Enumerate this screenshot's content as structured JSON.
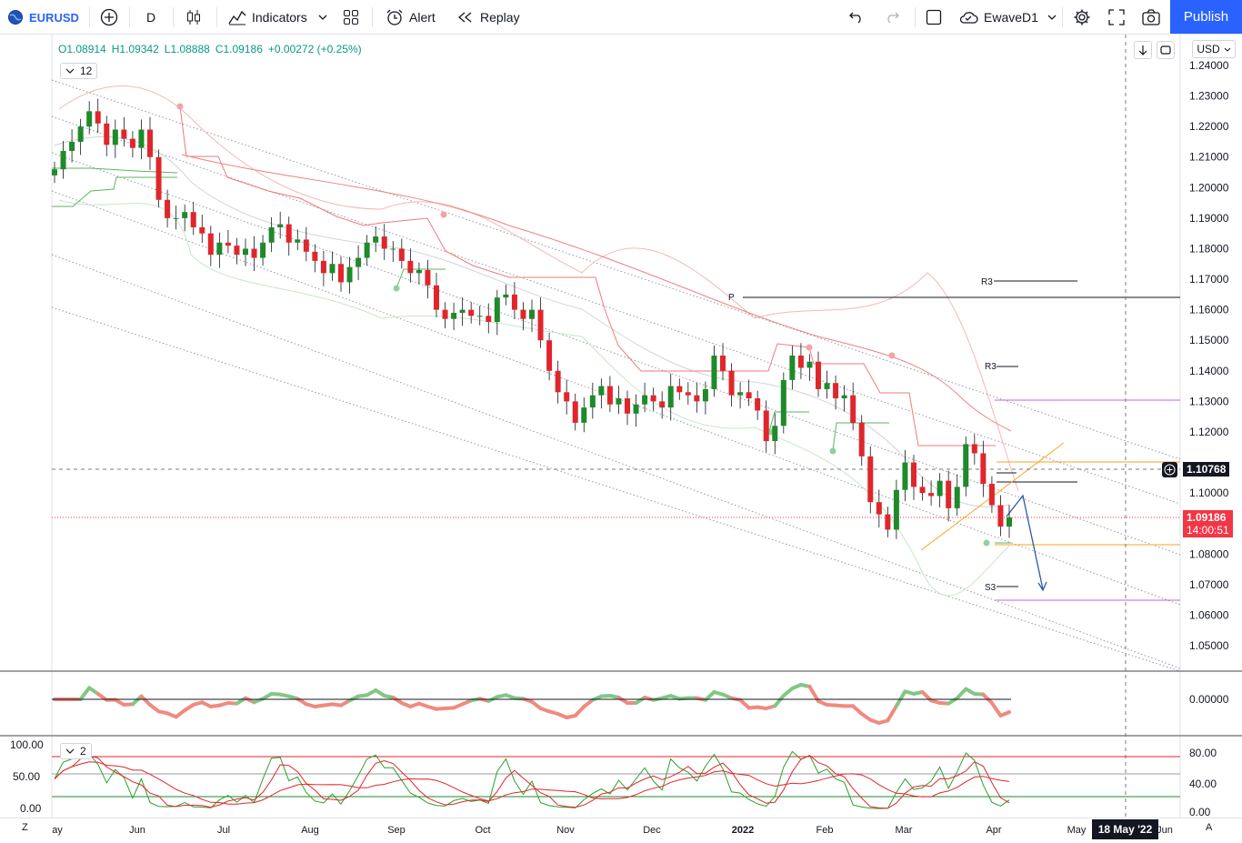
{
  "toolbar": {
    "symbol": "EURUSD",
    "interval": "D",
    "indicators_label": "Indicators",
    "alert_label": "Alert",
    "replay_label": "Replay",
    "layout_name": "EwaveD1",
    "publish_label": "Publish"
  },
  "legend": {
    "open": "O1.08914",
    "high": "H1.09342",
    "low": "L1.08888",
    "close": "C1.09186",
    "change": "+0.00272 (+0.25%)",
    "indicator_count": "12",
    "pane3_count": "2"
  },
  "price_axis": {
    "currency": "USD",
    "ticks": [
      "1.24000",
      "1.23000",
      "1.22000",
      "1.21000",
      "1.20000",
      "1.19000",
      "1.18000",
      "1.17000",
      "1.16000",
      "1.15000",
      "1.14000",
      "1.13000",
      "1.12000",
      "1.10000",
      "1.08000",
      "1.07000",
      "1.06000",
      "1.05000"
    ],
    "crosshair_price": "1.10768",
    "last_price": "1.09186",
    "countdown": "14:00:51"
  },
  "osc_axis": {
    "ticks": [
      "0.00000"
    ]
  },
  "stoch_axis": {
    "left_ticks": [
      "100.00",
      "50.00",
      "0.00"
    ],
    "right_ticks": [
      "80.00",
      "40.00",
      "0.00"
    ]
  },
  "pivots": {
    "p": "P",
    "r3a": "R3",
    "r3b": "R3",
    "s3": "S3"
  },
  "time_axis": {
    "ticks": [
      "ay",
      "Jun",
      "Jul",
      "Aug",
      "Sep",
      "Oct",
      "Nov",
      "Dec",
      "2022",
      "Feb",
      "Mar",
      "Apr",
      "May",
      "Jun"
    ],
    "crosshair_date": "18 May '22",
    "left_button": "Z",
    "right_button": "A"
  },
  "colors": {
    "up": "#1e8a2a",
    "down": "#e0262b",
    "accent": "#2962ff",
    "last_price": "#f23645"
  },
  "chart_data": {
    "type": "candlestick",
    "symbol": "EURUSD",
    "timeframe": "D",
    "ylim": [
      1.045,
      1.245
    ],
    "last": 1.09186,
    "note_levels": {
      "P": 1.164,
      "R3_upper": 1.169,
      "R3_lower": 1.141,
      "S3": 1.07
    },
    "closes": [
      1.206,
      1.212,
      1.215,
      1.22,
      1.225,
      1.221,
      1.214,
      1.219,
      1.216,
      1.213,
      1.219,
      1.21,
      1.196,
      1.19,
      1.19,
      1.192,
      1.187,
      1.185,
      1.178,
      1.182,
      1.181,
      1.178,
      1.18,
      1.177,
      1.182,
      1.187,
      1.188,
      1.182,
      1.183,
      1.179,
      1.176,
      1.172,
      1.175,
      1.169,
      1.174,
      1.177,
      1.182,
      1.184,
      1.18,
      1.18,
      1.176,
      1.172,
      1.173,
      1.168,
      1.16,
      1.157,
      1.159,
      1.16,
      1.158,
      1.158,
      1.156,
      1.164,
      1.165,
      1.16,
      1.157,
      1.16,
      1.15,
      1.14,
      1.133,
      1.13,
      1.123,
      1.128,
      1.132,
      1.135,
      1.129,
      1.131,
      1.126,
      1.129,
      1.132,
      1.13,
      1.128,
      1.135,
      1.133,
      1.132,
      1.13,
      1.134,
      1.145,
      1.14,
      1.132,
      1.133,
      1.131,
      1.127,
      1.117,
      1.122,
      1.137,
      1.145,
      1.141,
      1.143,
      1.134,
      1.136,
      1.131,
      1.132,
      1.123,
      1.112,
      1.097,
      1.093,
      1.088,
      1.101,
      1.11,
      1.102,
      1.1,
      1.099,
      1.104,
      1.095,
      1.102,
      1.116,
      1.113,
      1.103,
      1.096,
      1.089,
      1.092
    ]
  }
}
